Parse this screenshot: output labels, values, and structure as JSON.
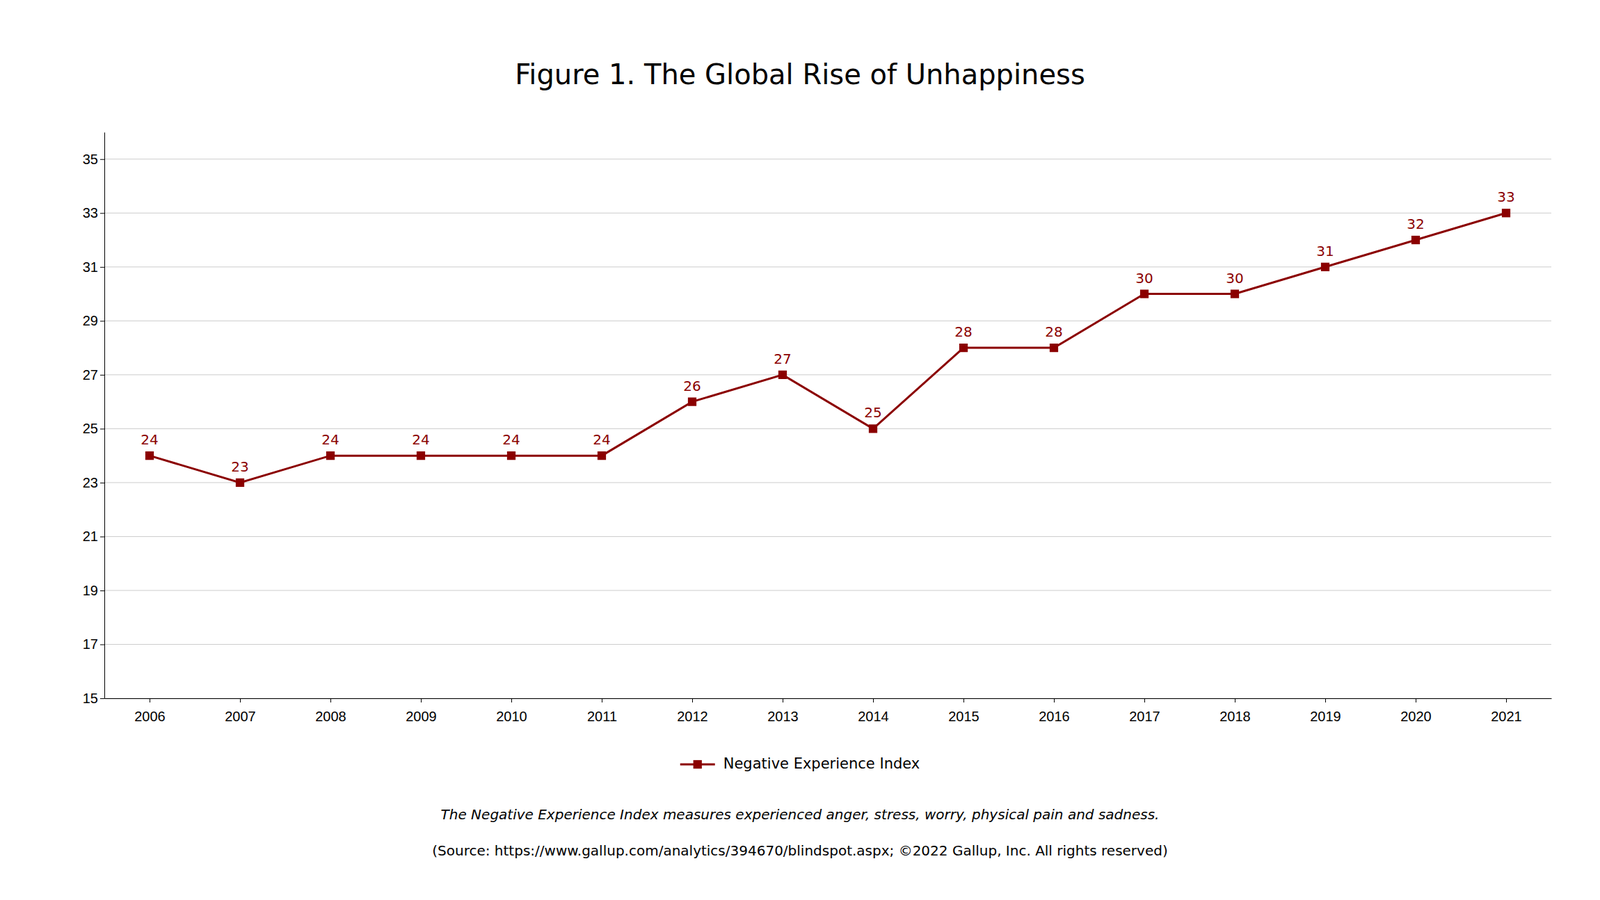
{
  "chart_data": {
    "type": "line",
    "title": "Figure 1. The Global Rise of Unhappiness",
    "x": [
      2006,
      2007,
      2008,
      2009,
      2010,
      2011,
      2012,
      2013,
      2014,
      2015,
      2016,
      2017,
      2018,
      2019,
      2020,
      2021
    ],
    "series": [
      {
        "name": "Negative Experience Index",
        "color": "#8B0000",
        "marker": "square",
        "values": [
          24,
          23,
          24,
          24,
          24,
          24,
          26,
          27,
          25,
          28,
          28,
          30,
          30,
          31,
          32,
          33
        ]
      }
    ],
    "xlim": [
      2005.5,
      2021.5
    ],
    "xticks": [
      2006,
      2007,
      2008,
      2009,
      2010,
      2011,
      2012,
      2013,
      2014,
      2015,
      2016,
      2017,
      2018,
      2019,
      2020,
      2021
    ],
    "ylim": [
      15,
      36
    ],
    "yticks": [
      15,
      17,
      19,
      21,
      23,
      25,
      27,
      29,
      31,
      33,
      35
    ],
    "grid": true,
    "data_labels": true,
    "legend": "bottom",
    "annotations": [
      "The Negative Experience Index measures experienced anger, stress, worry, physical pain and sadness.",
      "(Source: https://www.gallup.com/analytics/394670/blindspot.aspx; ©2022 Gallup, Inc. All rights reserved)"
    ]
  }
}
